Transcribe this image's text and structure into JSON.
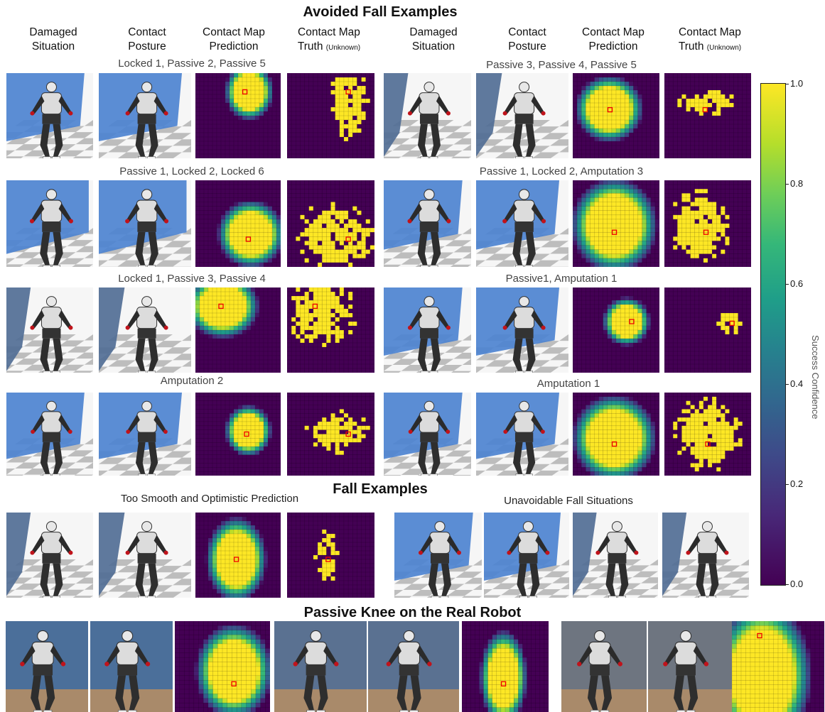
{
  "titles": {
    "avoided": "Avoided Fall Examples",
    "fall": "Fall Examples",
    "real": "Passive Knee on the Real Robot"
  },
  "columns": {
    "damaged_l1": "Damaged",
    "damaged_l2": "Situation",
    "contact_l1": "Contact",
    "contact_l2": "Posture",
    "pred_l1": "Contact Map",
    "pred_l2": "Prediction",
    "truth_l1": "Contact Map",
    "truth_l2": "Truth",
    "unknown": "(Unknown)"
  },
  "captions": {
    "r1l": "Locked 1, Passive 2, Passive 5",
    "r1r": "Passive 3, Passive 4, Passive 5",
    "r2l": "Passive 1, Locked 2, Locked 6",
    "r2r": "Passive 1, Locked 2, Amputation 3",
    "r3l": "Locked 1, Passive 3, Passive 4",
    "r3r": "Passive1, Amputation 1",
    "r4l": "Amputation 2",
    "r4r": "Amputation 1",
    "r5l": "Too Smooth and Optimistic Prediction",
    "r5r": "Unavoidable Fall Situations"
  },
  "colorbar": {
    "label": "Success Confidence",
    "ticks": [
      "1.0",
      "0.8",
      "0.6",
      "0.4",
      "0.2",
      "0.0"
    ],
    "colors": {
      "dark": "#440154",
      "mid_blue": "#31688e",
      "teal": "#21918c",
      "green": "#5ec962",
      "yellow": "#fde725"
    }
  },
  "icons": {
    "robot": "humanoid-robot-icon",
    "wall": "blue-wall-shape",
    "floor": "checkerboard-floor-shape",
    "target": "red-target-marker-icon"
  }
}
